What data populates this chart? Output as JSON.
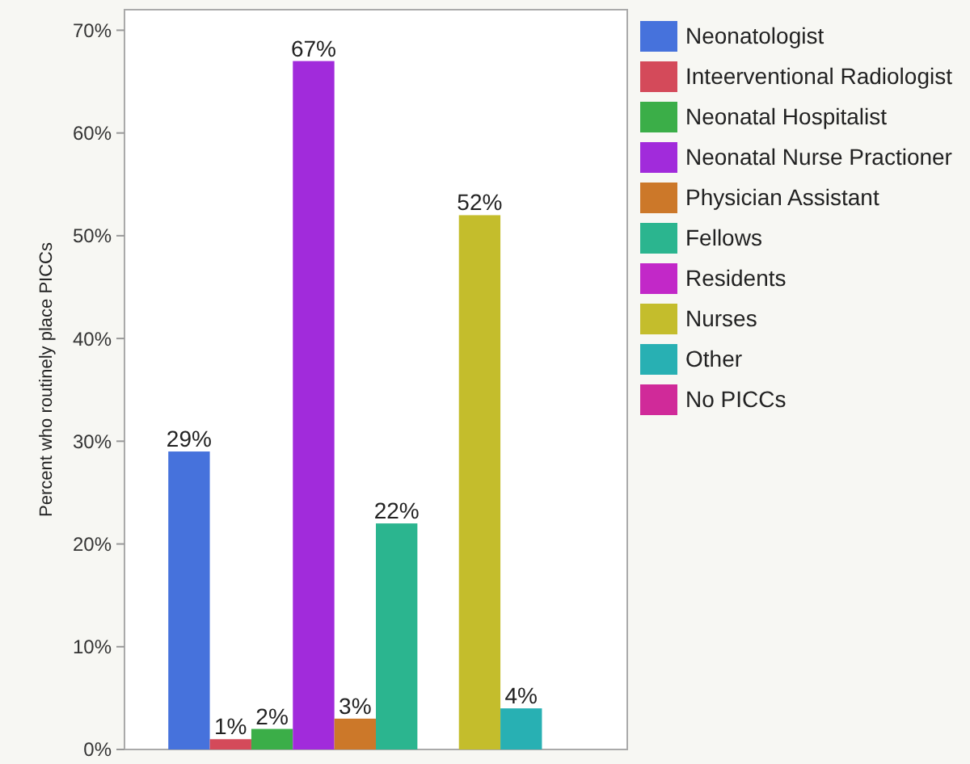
{
  "chart_data": {
    "type": "bar",
    "ylabel": "Percent who routinely place PICCs",
    "categories": [
      null
    ],
    "series": [
      {
        "name": "Neonatologist",
        "color": "#4672dc",
        "values": [
          29
        ],
        "value_labels": [
          "29%"
        ]
      },
      {
        "name": "Inteerventional Radiologist",
        "color": "#d44a5a",
        "values": [
          1
        ],
        "value_labels": [
          "1%"
        ]
      },
      {
        "name": "Neonatal Hospitalist",
        "color": "#3bae48",
        "values": [
          2
        ],
        "value_labels": [
          "2%"
        ]
      },
      {
        "name": "Neonatal Nurse Practioner",
        "color": "#a12bdb",
        "values": [
          67
        ],
        "value_labels": [
          "67%"
        ]
      },
      {
        "name": "Physician Assistant",
        "color": "#cc7829",
        "values": [
          3
        ],
        "value_labels": [
          "3%"
        ]
      },
      {
        "name": "Fellows",
        "color": "#2bb58f",
        "values": [
          22
        ],
        "value_labels": [
          "22%"
        ]
      },
      {
        "name": "Residents",
        "color": "#c228c8",
        "values": [
          null
        ],
        "value_labels": [
          null
        ]
      },
      {
        "name": "Nurses",
        "color": "#c4bd2c",
        "values": [
          52
        ],
        "value_labels": [
          "52%"
        ]
      },
      {
        "name": "Other",
        "color": "#28b0b3",
        "values": [
          4
        ],
        "value_labels": [
          "4%"
        ]
      },
      {
        "name": "No PICCs",
        "color": "#d02a99",
        "values": [
          null
        ],
        "value_labels": [
          null
        ]
      }
    ],
    "ylim": [
      0,
      72
    ],
    "yticks": [
      {
        "value": 0,
        "label": "0%"
      },
      {
        "value": 10,
        "label": "10%"
      },
      {
        "value": 20,
        "label": "20%"
      },
      {
        "value": 30,
        "label": "30%"
      },
      {
        "value": 40,
        "label": "40%"
      },
      {
        "value": 50,
        "label": "50%"
      },
      {
        "value": 60,
        "label": "60%"
      },
      {
        "value": 70,
        "label": "70%"
      }
    ],
    "grid": false,
    "legend": "right"
  }
}
